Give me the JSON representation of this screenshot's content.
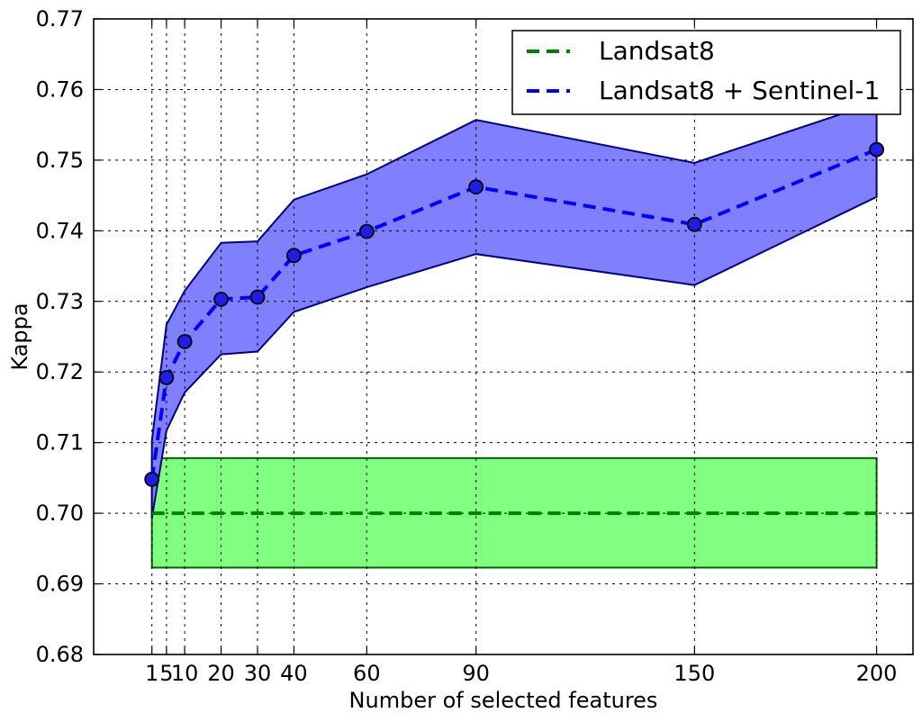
{
  "chart_data": {
    "type": "line",
    "xlabel": "Number of selected features",
    "ylabel": "Kappa",
    "xlim": [
      -15,
      210
    ],
    "ylim": [
      0.68,
      0.77
    ],
    "x_ticks": [
      1,
      5,
      10,
      20,
      30,
      40,
      60,
      90,
      150,
      200
    ],
    "x_tick_labels": [
      "1",
      "5",
      "10",
      "20",
      "30",
      "40",
      "60",
      "90",
      "150",
      "200"
    ],
    "y_ticks": [
      0.68,
      0.69,
      0.7,
      0.71,
      0.72,
      0.73,
      0.74,
      0.75,
      0.76,
      0.77
    ],
    "y_tick_labels": [
      "0.68",
      "0.69",
      "0.70",
      "0.71",
      "0.72",
      "0.73",
      "0.74",
      "0.75",
      "0.76",
      "0.77"
    ],
    "grid": true,
    "legend_position": "top-right",
    "series": [
      {
        "name": "Landsat8",
        "color": "#008000",
        "band_color": "#80ff80",
        "x": [
          1,
          200
        ],
        "values": [
          0.7,
          0.7
        ],
        "lower": [
          0.6923,
          0.6923
        ],
        "upper": [
          0.7078,
          0.7078
        ]
      },
      {
        "name": "Landsat8 + Sentinel-1",
        "color": "#0000ff",
        "band_color": "#8080ff",
        "x": [
          1,
          5,
          10,
          20,
          30,
          40,
          60,
          90,
          150,
          200
        ],
        "values": [
          0.7048,
          0.7192,
          0.7243,
          0.7303,
          0.7306,
          0.7365,
          0.7399,
          0.7462,
          0.7409,
          0.7515
        ],
        "lower": [
          0.6993,
          0.7117,
          0.7171,
          0.7225,
          0.7229,
          0.7285,
          0.732,
          0.7367,
          0.7323,
          0.7448
        ],
        "upper": [
          0.7103,
          0.7267,
          0.7315,
          0.7383,
          0.7385,
          0.7444,
          0.748,
          0.7557,
          0.7496,
          0.7582
        ]
      }
    ]
  }
}
